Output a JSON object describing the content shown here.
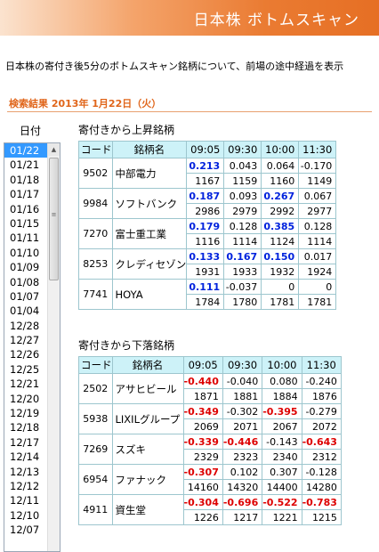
{
  "header": {
    "title": "日本株  ボトムスキャン"
  },
  "intro": "日本株の寄付き後5分のボトムスキャン銘柄について、前場の途中経過を表示",
  "results": {
    "heading": "検索結果 2013年 1月22日（火）"
  },
  "dates": {
    "label": "日付",
    "selected": "01/22",
    "items": [
      "01/22",
      "01/21",
      "01/18",
      "01/17",
      "01/16",
      "01/15",
      "01/11",
      "01/10",
      "01/09",
      "01/08",
      "01/07",
      "01/04",
      "12/28",
      "12/27",
      "12/26",
      "12/25",
      "12/21",
      "12/20",
      "12/19",
      "12/18",
      "12/17",
      "12/14",
      "12/13",
      "12/12",
      "12/11",
      "12/10",
      "12/07"
    ]
  },
  "columns": {
    "code": "コード",
    "name": "銘柄名",
    "times": [
      "09:05",
      "09:30",
      "10:00",
      "11:30"
    ]
  },
  "rising": {
    "title": "寄付きから上昇銘柄",
    "rows": [
      {
        "code": "9502",
        "name": "中部電力",
        "rates": [
          "0.213",
          "0.043",
          "0.064",
          "-0.170"
        ],
        "hl": [
          true,
          false,
          false,
          false
        ],
        "prices": [
          "1167",
          "1159",
          "1160",
          "1149"
        ]
      },
      {
        "code": "9984",
        "name": "ソフトバンク",
        "rates": [
          "0.187",
          "0.093",
          "0.267",
          "0.067"
        ],
        "hl": [
          true,
          false,
          true,
          false
        ],
        "prices": [
          "2986",
          "2979",
          "2992",
          "2977"
        ]
      },
      {
        "code": "7270",
        "name": "富士重工業",
        "rates": [
          "0.179",
          "0.128",
          "0.385",
          "0.128"
        ],
        "hl": [
          true,
          false,
          true,
          false
        ],
        "prices": [
          "1116",
          "1114",
          "1124",
          "1114"
        ]
      },
      {
        "code": "8253",
        "name": "クレディセゾン",
        "rates": [
          "0.133",
          "0.167",
          "0.150",
          "0.017"
        ],
        "hl": [
          true,
          true,
          true,
          false
        ],
        "prices": [
          "1931",
          "1933",
          "1932",
          "1924"
        ]
      },
      {
        "code": "7741",
        "name": "HOYA",
        "rates": [
          "0.111",
          "-0.037",
          "0",
          "0"
        ],
        "hl": [
          true,
          false,
          false,
          false
        ],
        "prices": [
          "1784",
          "1780",
          "1781",
          "1781"
        ]
      }
    ]
  },
  "falling": {
    "title": "寄付きから下落銘柄",
    "rows": [
      {
        "code": "2502",
        "name": "アサヒビール",
        "rates": [
          "-0.440",
          "-0.040",
          "0.080",
          "-0.240"
        ],
        "hl": [
          true,
          false,
          false,
          false
        ],
        "prices": [
          "1871",
          "1881",
          "1884",
          "1876"
        ]
      },
      {
        "code": "5938",
        "name": "LIXILグループ",
        "rates": [
          "-0.349",
          "-0.302",
          "-0.395",
          "-0.279"
        ],
        "hl": [
          true,
          false,
          true,
          false
        ],
        "prices": [
          "2069",
          "2071",
          "2067",
          "2072"
        ]
      },
      {
        "code": "7269",
        "name": "スズキ",
        "rates": [
          "-0.339",
          "-0.446",
          "-0.143",
          "-0.643"
        ],
        "hl": [
          true,
          true,
          false,
          true
        ],
        "prices": [
          "2329",
          "2323",
          "2340",
          "2312"
        ]
      },
      {
        "code": "6954",
        "name": "ファナック",
        "rates": [
          "-0.307",
          "0.102",
          "0.307",
          "-0.128"
        ],
        "hl": [
          true,
          false,
          false,
          false
        ],
        "prices": [
          "14160",
          "14320",
          "14400",
          "14280"
        ]
      },
      {
        "code": "4911",
        "name": "資生堂",
        "rates": [
          "-0.304",
          "-0.696",
          "-0.522",
          "-0.783"
        ],
        "hl": [
          true,
          true,
          true,
          true
        ],
        "prices": [
          "1226",
          "1217",
          "1221",
          "1215"
        ]
      }
    ]
  },
  "colors": {
    "banner": "#e66f24",
    "heading": "#e0651a",
    "table_header": "#cdf2f8",
    "rise_highlight": "#0022dd",
    "fall_highlight": "#dd0000",
    "selected": "#3399ff"
  },
  "icons": {
    "scroll_up": "scroll-up-arrow-icon",
    "scroll_grip": "scroll-grip-icon"
  }
}
